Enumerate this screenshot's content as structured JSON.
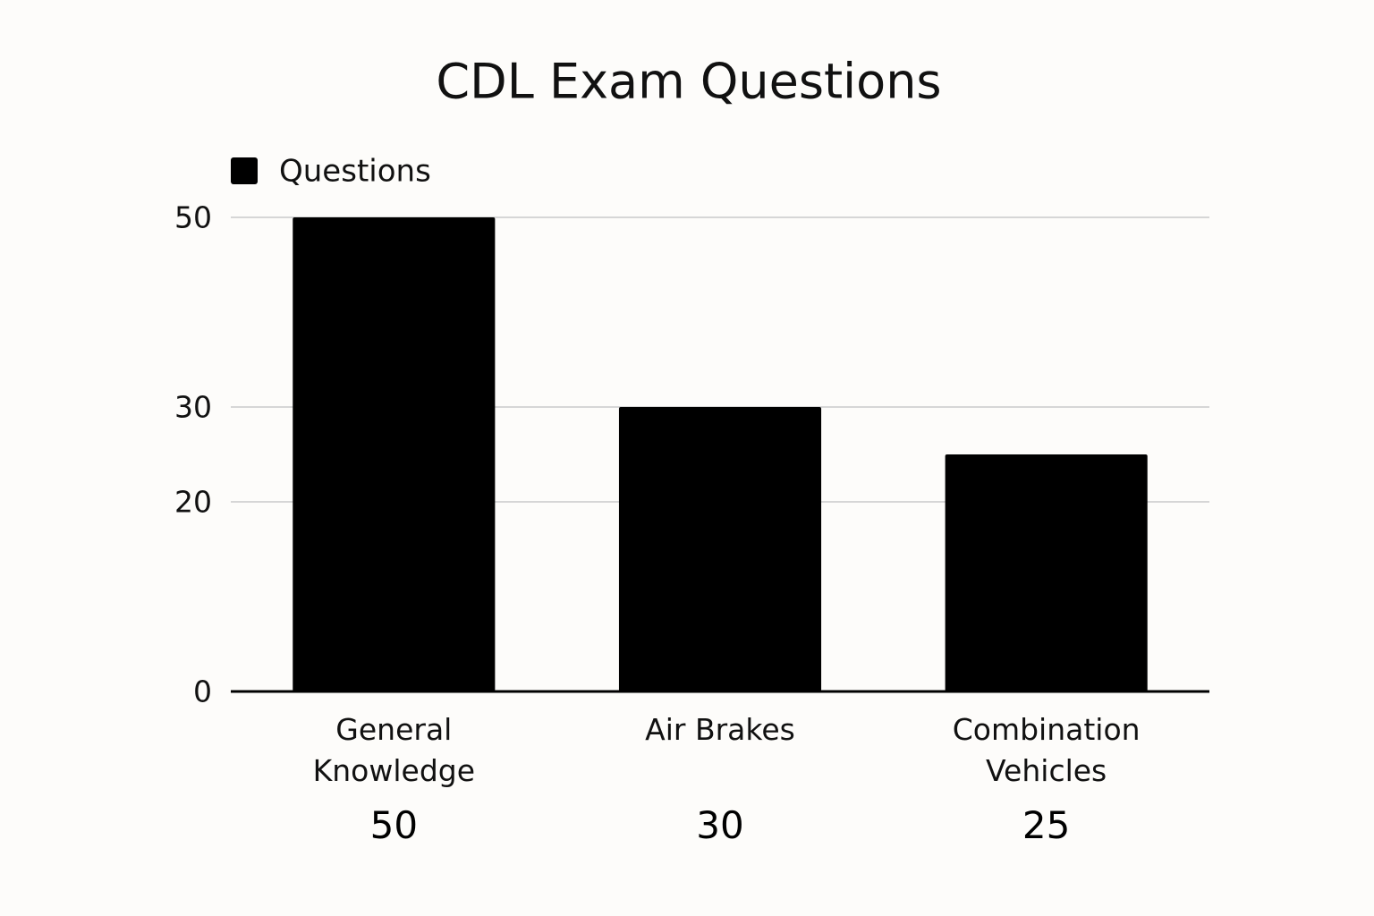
{
  "chart_data": {
    "type": "bar",
    "title": "CDL Exam Questions",
    "categories": [
      "General Knowledge",
      "Air Brakes",
      "Combination Vehicles"
    ],
    "series": [
      {
        "name": "Questions",
        "color": "#000000",
        "values": [
          50,
          30,
          25
        ]
      }
    ],
    "ylim": [
      0,
      50
    ],
    "yticks": [
      0,
      20,
      30,
      50
    ],
    "grid": true,
    "legend": "top-left"
  }
}
